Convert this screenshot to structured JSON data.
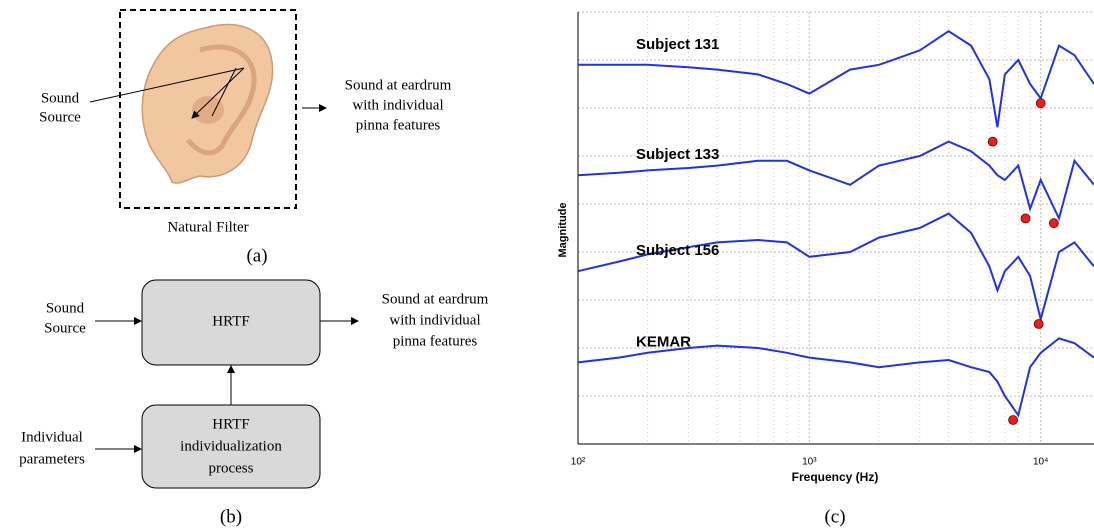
{
  "panel_a": {
    "input_text": [
      "Sound",
      "Source"
    ],
    "output_text": [
      "Sound at eardrum",
      "with individual",
      "pinna features"
    ],
    "box_caption": "Natural Filter",
    "label": "(a)"
  },
  "panel_b": {
    "input_text": [
      "Sound",
      "Source"
    ],
    "hrtf_box": "HRTF",
    "output_text": [
      "Sound at eardrum",
      "with individual",
      "pinna features"
    ],
    "process_box": [
      "HRTF",
      "individualization",
      "process"
    ],
    "param_text": [
      "Individual",
      "parameters"
    ],
    "label": "(b)"
  },
  "chart_data": {
    "type": "line",
    "label": "(c)",
    "x_label": "Frequency (Hz)",
    "y_label": "Magnitude",
    "log_x": true,
    "grid": true,
    "xlim": [
      100,
      17000
    ],
    "xticks": [
      {
        "value": 100,
        "label": "10²"
      },
      {
        "value": 1000,
        "label": "10³"
      },
      {
        "value": 10000,
        "label": "10⁴"
      }
    ],
    "ylim": [
      0,
      9
    ],
    "yticks": [
      0,
      1,
      2,
      3,
      4,
      5,
      6,
      7,
      8,
      9
    ],
    "x": [
      100,
      150,
      200,
      300,
      400,
      600,
      800,
      1000,
      1500,
      2000,
      3000,
      4000,
      5000,
      6000,
      6500,
      7000,
      8000,
      9000,
      10000,
      12000,
      14000,
      17000
    ],
    "series": [
      {
        "name": "Subject 131",
        "color": "#2233dd",
        "values": [
          7.9,
          7.9,
          7.9,
          7.85,
          7.8,
          7.7,
          7.5,
          7.3,
          7.8,
          7.9,
          8.2,
          8.6,
          8.3,
          7.6,
          6.6,
          7.7,
          8.0,
          7.5,
          7.2,
          8.3,
          8.1,
          7.5
        ]
      },
      {
        "name": "Subject 133",
        "color": "#2233dd",
        "values": [
          5.6,
          5.65,
          5.7,
          5.75,
          5.8,
          5.9,
          5.9,
          5.7,
          5.4,
          5.8,
          6.0,
          6.3,
          6.1,
          5.8,
          5.6,
          5.5,
          5.8,
          4.9,
          5.5,
          4.7,
          5.9,
          5.4
        ]
      },
      {
        "name": "Subject 156",
        "color": "#2233dd",
        "values": [
          3.6,
          3.8,
          3.95,
          4.1,
          4.2,
          4.25,
          4.2,
          3.9,
          4.0,
          4.3,
          4.5,
          4.8,
          4.4,
          3.7,
          3.2,
          3.6,
          3.9,
          3.5,
          2.6,
          4.0,
          4.2,
          3.7
        ]
      },
      {
        "name": "KEMAR",
        "color": "#2233dd",
        "values": [
          1.7,
          1.8,
          1.9,
          2.0,
          2.05,
          2.0,
          1.9,
          1.8,
          1.7,
          1.6,
          1.7,
          1.75,
          1.6,
          1.5,
          1.3,
          1.0,
          0.6,
          1.6,
          1.9,
          2.2,
          2.1,
          1.8
        ]
      }
    ],
    "markers": {
      "color": "#e8201c",
      "x": [
        10000,
        6200,
        8600,
        11400,
        9800,
        7600
      ],
      "y": [
        7.1,
        6.3,
        4.7,
        4.6,
        2.5,
        0.5
      ]
    }
  }
}
